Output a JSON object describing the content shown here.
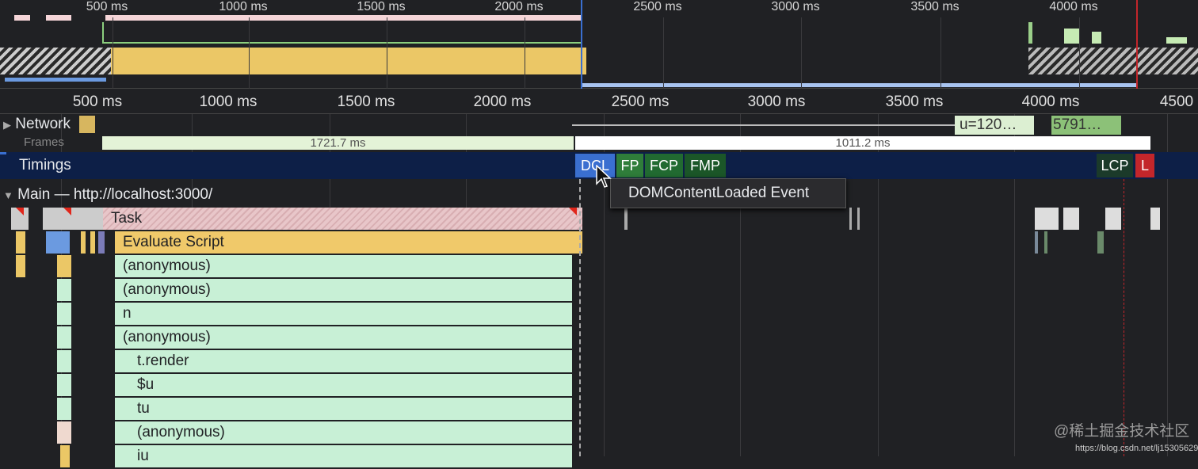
{
  "overview": {
    "ticks": [
      "500 ms",
      "1000 ms",
      "1500 ms",
      "2000 ms",
      "2500 ms",
      "3000 ms",
      "3500 ms",
      "4000 ms"
    ]
  },
  "ruler": {
    "ticks": [
      "500 ms",
      "1000 ms",
      "1500 ms",
      "2000 ms",
      "2500 ms",
      "3000 ms",
      "3500 ms",
      "4000 ms",
      "4500"
    ]
  },
  "tracks": {
    "network": "Network",
    "network_items": [
      "u=120…",
      "5791…"
    ],
    "frames": "Frames",
    "frame_durations": [
      "1721.7 ms",
      "1011.2 ms"
    ],
    "timings": "Timings",
    "main": "Main — http://localhost:3000/"
  },
  "timings": [
    "DCL",
    "FP",
    "FCP",
    "FMP",
    "LCP",
    "L"
  ],
  "tooltip": "DOMContentLoaded Event",
  "flame": [
    "Task",
    "Evaluate Script",
    "(anonymous)",
    "(anonymous)",
    "n",
    "(anonymous)",
    "t.render",
    "$u",
    "tu",
    "(anonymous)",
    "iu"
  ],
  "watermark": {
    "line1": "@稀土掘金技术社区",
    "line2": "https://blog.csdn.net/lj1530562965"
  },
  "colors": {
    "timings_bg": "#0d1f47",
    "task": "#e8c6c9",
    "script": "#f0c96a",
    "js": "#c8f0d6",
    "dcl": "#3a6fd0",
    "lcp": "#1b3a2a",
    "l": "#c3262b"
  }
}
